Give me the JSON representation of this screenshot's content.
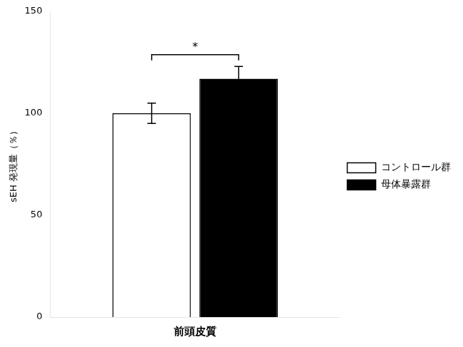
{
  "chart_data": {
    "type": "bar",
    "categories": [
      null
    ],
    "series": [
      {
        "name": "コントロール群",
        "color": "#ffffff",
        "values": [
          100
        ],
        "errors": [
          5
        ]
      },
      {
        "name": "母体暴露群",
        "color": "#000000",
        "values": [
          117
        ],
        "errors": [
          6
        ]
      }
    ],
    "xlabel": "前頭皮質",
    "ylabel": "sEH 発現量（％）",
    "ylim": [
      0,
      150
    ],
    "yticks": [
      0,
      50,
      100,
      150
    ],
    "grid": false,
    "legend": "right",
    "tick_labels": "y",
    "annotations": [
      {
        "text": "*",
        "y": 126
      }
    ]
  }
}
